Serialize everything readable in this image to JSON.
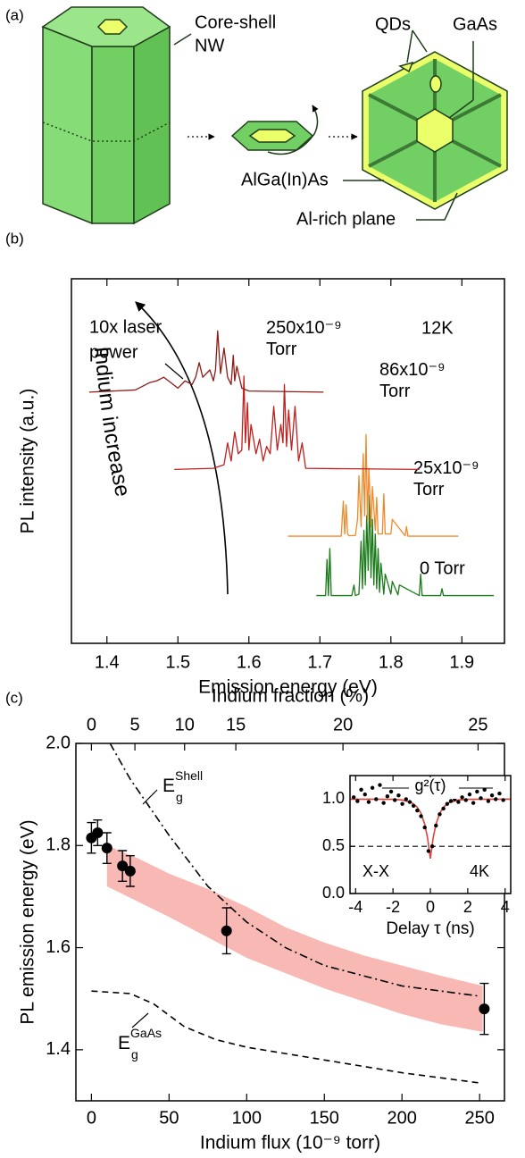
{
  "panel_a": {
    "panel_label": "(a)",
    "core_shell": [
      "Core-shell",
      "NW"
    ],
    "qds": "QDs",
    "gaas": "GaAs",
    "algainas": "AlGa(In)As",
    "al_rich": "Al-rich plane"
  },
  "chart_data": [
    {
      "type": "line",
      "panel_label": "(b)",
      "xlabel": "Emission energy (eV)",
      "ylabel": "PL intensity (a.u.)",
      "xlim": [
        1.35,
        1.96
      ],
      "xticks": [
        1.4,
        1.5,
        1.6,
        1.7,
        1.8,
        1.9
      ],
      "ylim": [
        0,
        10
      ],
      "temperature": "12K",
      "power_note": [
        "10x laser",
        "power"
      ],
      "arrow_label": "Indium increase",
      "series": [
        {
          "name": "0 Torr",
          "color": "#1a7a1a",
          "x": [
            1.695,
            1.708,
            1.71,
            1.712,
            1.714,
            1.716,
            1.718,
            1.745,
            1.748,
            1.75,
            1.755,
            1.758,
            1.76,
            1.762,
            1.764,
            1.766,
            1.768,
            1.77,
            1.772,
            1.774,
            1.776,
            1.778,
            1.78,
            1.782,
            1.784,
            1.786,
            1.79,
            1.792,
            1.8,
            1.802,
            1.81,
            1.812,
            1.84,
            1.842,
            1.844,
            1.87,
            1.872,
            1.874,
            1.945
          ],
          "values": [
            1.31,
            1.31,
            2.3,
            1.31,
            2.6,
            1.31,
            1.31,
            1.31,
            1.6,
            1.31,
            1.35,
            2.8,
            1.5,
            3.1,
            1.6,
            3.5,
            2.0,
            4.07,
            1.8,
            3.4,
            1.6,
            3.0,
            1.5,
            2.6,
            1.4,
            2.2,
            1.35,
            1.9,
            1.35,
            1.7,
            1.33,
            1.6,
            1.31,
            1.9,
            1.31,
            1.31,
            1.5,
            1.31,
            1.31
          ]
        },
        {
          "name": "25x10⁻⁹ Torr",
          "color": "#ef8a2c",
          "x": [
            1.655,
            1.73,
            1.733,
            1.735,
            1.737,
            1.739,
            1.741,
            1.75,
            1.753,
            1.755,
            1.758,
            1.761,
            1.763,
            1.765,
            1.767,
            1.769,
            1.772,
            1.774,
            1.778,
            1.78,
            1.782,
            1.788,
            1.79,
            1.792,
            1.8,
            1.802,
            1.82,
            1.822,
            1.824,
            1.895
          ],
          "values": [
            2.94,
            2.94,
            3.9,
            3.0,
            3.8,
            3.0,
            2.95,
            2.96,
            3.4,
            4.6,
            3.2,
            5.2,
            3.5,
            5.73,
            3.4,
            4.8,
            3.2,
            4.3,
            3.1,
            4.0,
            3.0,
            3.0,
            4.1,
            3.0,
            3.0,
            3.4,
            2.95,
            3.2,
            2.94,
            2.94
          ]
        },
        {
          "name": "86x10⁻⁹ Torr",
          "color": "#c0201e",
          "x": [
            1.495,
            1.55,
            1.565,
            1.57,
            1.575,
            1.58,
            1.585,
            1.59,
            1.593,
            1.595,
            1.598,
            1.6,
            1.603,
            1.61,
            1.615,
            1.62,
            1.625,
            1.63,
            1.635,
            1.64,
            1.645,
            1.648,
            1.65,
            1.653,
            1.656,
            1.66,
            1.665,
            1.67,
            1.675,
            1.68,
            1.84
          ],
          "values": [
            4.77,
            4.8,
            4.9,
            5.5,
            5.0,
            5.8,
            5.2,
            5.3,
            7.33,
            5.5,
            6.6,
            5.3,
            6.0,
            5.2,
            5.6,
            5.0,
            5.4,
            5.2,
            6.5,
            5.3,
            6.0,
            5.5,
            7.1,
            5.4,
            6.4,
            5.3,
            6.5,
            5.0,
            5.5,
            4.8,
            4.77
          ]
        },
        {
          "name": "250x10⁻⁹ Torr",
          "color": "#8e1b16",
          "x": [
            1.375,
            1.44,
            1.46,
            1.47,
            1.48,
            1.49,
            1.5,
            1.51,
            1.52,
            1.525,
            1.53,
            1.535,
            1.54,
            1.545,
            1.55,
            1.553,
            1.556,
            1.56,
            1.565,
            1.57,
            1.575,
            1.578,
            1.58,
            1.583,
            1.59,
            1.6,
            1.705
          ],
          "values": [
            6.89,
            6.95,
            7.15,
            7.2,
            7.3,
            7.15,
            7.0,
            7.2,
            7.1,
            7.3,
            7.7,
            7.3,
            7.4,
            7.5,
            7.2,
            7.5,
            8.57,
            7.4,
            8.1,
            7.3,
            7.1,
            7.9,
            7.2,
            7.6,
            7.0,
            6.92,
            6.89
          ]
        }
      ]
    },
    {
      "type": "scatter",
      "panel_label": "(c)",
      "xlabel": "Indium flux (10⁻⁹ torr)",
      "ylabel": "PL emission energy (eV)",
      "x2label": "Indium fraction (%)",
      "x2ticks": [
        0,
        5,
        10,
        15,
        20,
        25
      ],
      "x2ticks_at_x": [
        0,
        28,
        60,
        93,
        162,
        249
      ],
      "xlim": [
        -10,
        266
      ],
      "xticks": [
        0,
        50,
        100,
        150,
        200,
        250
      ],
      "ylim": [
        1.3,
        2.0
      ],
      "yticks": [
        1.4,
        1.6,
        1.8,
        {
          "value": 2.0,
          "label": "2.0"
        }
      ],
      "x": [
        0,
        4,
        10,
        20,
        25,
        87,
        253
      ],
      "values": [
        1.815,
        1.825,
        1.795,
        1.76,
        1.75,
        1.633,
        1.48
      ],
      "errors": [
        0.03,
        0.025,
        0.03,
        0.03,
        0.03,
        0.045,
        0.05
      ],
      "color": "#000000",
      "band": {
        "color": "#f8b9b5",
        "x": [
          10,
          30,
          50,
          75,
          100,
          125,
          150,
          175,
          200,
          225,
          252
        ],
        "upper": [
          1.8,
          1.775,
          1.745,
          1.715,
          1.68,
          1.64,
          1.61,
          1.585,
          1.565,
          1.545,
          1.525
        ],
        "lower": [
          1.72,
          1.69,
          1.66,
          1.62,
          1.58,
          1.55,
          1.52,
          1.495,
          1.47,
          1.45,
          1.435
        ]
      },
      "curves": [
        {
          "label": {
            "base": "E",
            "sub": "g",
            "sup": "Shell"
          },
          "style": "dashdot",
          "x": [
            12,
            25,
            50,
            75,
            100,
            125,
            150,
            200,
            250
          ],
          "values": [
            2.0,
            1.93,
            1.82,
            1.72,
            1.65,
            1.6,
            1.565,
            1.525,
            1.505
          ]
        },
        {
          "label": {
            "base": "E",
            "sub": "g",
            "sup": "GaAs"
          },
          "style": "dashed",
          "x": [
            0,
            25,
            40,
            60,
            80,
            100,
            150,
            200,
            250
          ],
          "values": [
            1.515,
            1.51,
            1.49,
            1.445,
            1.42,
            1.405,
            1.38,
            1.355,
            1.335
          ]
        }
      ]
    },
    {
      "type": "scatter",
      "inset": true,
      "xlabel": "Delay τ (ns)",
      "legend": "g²(τ)",
      "labels": [
        "X-X",
        "4K"
      ],
      "xlim": [
        -4.3,
        4.3
      ],
      "xticks": [
        -4,
        -2,
        0,
        2,
        4
      ],
      "ylim": [
        0,
        1.25
      ],
      "yticks": [
        {
          "value": 0,
          "label": "0.0"
        },
        {
          "value": 0.5,
          "label": "0.5"
        },
        {
          "value": 1,
          "label": "1.0"
        }
      ],
      "reference": 0.5,
      "color": "#000000",
      "x": [
        -4.1,
        -3.9,
        -3.7,
        -3.5,
        -3.3,
        -3.1,
        -2.9,
        -2.7,
        -2.5,
        -2.3,
        -2.1,
        -1.9,
        -1.7,
        -1.5,
        -1.3,
        -1.1,
        -0.9,
        -0.7,
        -0.5,
        -0.3,
        -0.1,
        0.1,
        0.3,
        0.5,
        0.7,
        0.9,
        1.1,
        1.3,
        1.5,
        1.7,
        1.9,
        2.1,
        2.3,
        2.5,
        2.7,
        2.9,
        3.1,
        3.3,
        3.5,
        3.7,
        3.9
      ],
      "values": [
        1.02,
        0.98,
        1.1,
        1.05,
        0.97,
        1.12,
        1.0,
        1.15,
        0.96,
        1.03,
        1.08,
        0.99,
        1.04,
        0.95,
        1.0,
        0.97,
        0.93,
        0.88,
        0.82,
        0.7,
        0.45,
        0.5,
        0.72,
        0.84,
        0.9,
        0.95,
        0.98,
        1.0,
        0.97,
        1.02,
        0.99,
        1.05,
        0.96,
        1.08,
        1.01,
        1.1,
        0.98,
        1.04,
        1.0,
        1.06,
        0.99
      ],
      "fit": {
        "color": "#e0443a",
        "x": [
          -4.3,
          -3,
          -2,
          -1.5,
          -1,
          -0.7,
          -0.5,
          -0.3,
          -0.15,
          0,
          0.15,
          0.3,
          0.5,
          0.7,
          1,
          1.5,
          2,
          3,
          4.3
        ],
        "values": [
          1.0,
          1.0,
          0.998,
          0.991,
          0.964,
          0.915,
          0.85,
          0.733,
          0.59,
          0.37,
          0.59,
          0.733,
          0.85,
          0.915,
          0.964,
          0.991,
          0.998,
          1.0,
          1.0
        ]
      }
    }
  ]
}
